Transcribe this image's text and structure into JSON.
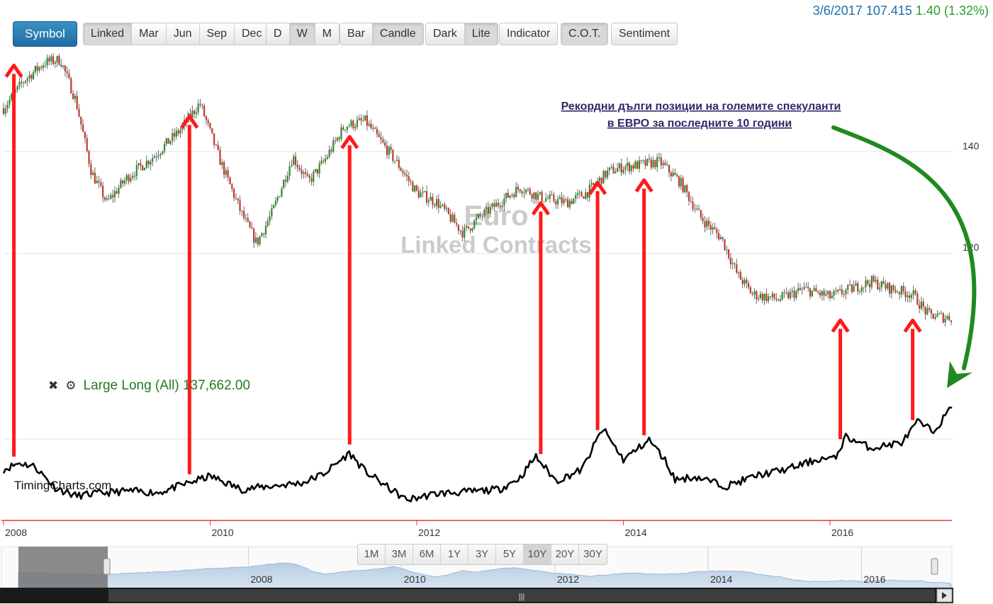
{
  "toolbar": {
    "symbol_label": "Symbol",
    "contract_buttons": [
      "Linked",
      "Mar",
      "Jun",
      "Sep",
      "Dec"
    ],
    "period_buttons": [
      "D",
      "W",
      "M"
    ],
    "period_active": "W",
    "style_buttons": [
      "Bar",
      "Candle"
    ],
    "style_active": "Candle",
    "theme_buttons": [
      "Dark",
      "Lite"
    ],
    "theme_active": "Lite",
    "indicator_label": "Indicator",
    "cot_label": "C.O.T.",
    "sentiment_label": "Sentiment"
  },
  "quote": {
    "date": "3/6/2017",
    "price": "107.415",
    "change": "1.40",
    "change_pct": "(1.32%)"
  },
  "chart_watermark": {
    "line1": "Euro",
    "line2": "Linked Contracts"
  },
  "annotation": {
    "line1": "Рекордни дълги позиции на големите спекуланти",
    "line2": "в ЕВРО за последните 10 години"
  },
  "indicator": {
    "label": "Large Long (All) 137,662.00",
    "close_icon": "close-icon",
    "settings_icon": "gear-icon"
  },
  "brand": "TimingCharts.com",
  "range_selector": {
    "buttons": [
      "1M",
      "3M",
      "6M",
      "1Y",
      "3Y",
      "5Y",
      "10Y",
      "20Y",
      "30Y"
    ],
    "active": "10Y"
  },
  "navigator": {
    "year_labels": [
      "2008",
      "2010",
      "2012",
      "2014",
      "2016"
    ],
    "scroll_icon": "scrollbar-grip-icon"
  },
  "colors": {
    "up_candle": "#2e8b2e",
    "down_candle": "#c0392b",
    "arrow_red": "#ff1a1a",
    "arrow_green": "#1f8a1f",
    "indicator_line": "#000000",
    "axis_red": "#e53935"
  },
  "chart_data": [
    {
      "type": "candlestick",
      "title": "Euro Linked Contracts",
      "period": "weekly",
      "x_range": [
        "2008-01",
        "2017-03"
      ],
      "y_ticks": [
        120,
        140
      ],
      "x_ticks": [
        "2008",
        "2010",
        "2012",
        "2014",
        "2016"
      ],
      "series": [
        {
          "name": "Euro",
          "x": [
            2008.0,
            2008.2,
            2008.4,
            2008.55,
            2008.7,
            2008.85,
            2009.0,
            2009.2,
            2009.45,
            2009.7,
            2009.9,
            2010.1,
            2010.3,
            2010.45,
            2010.6,
            2010.8,
            2010.95,
            2011.1,
            2011.3,
            2011.5,
            2011.65,
            2011.8,
            2012.0,
            2012.2,
            2012.45,
            2012.6,
            2012.8,
            2013.0,
            2013.2,
            2013.45,
            2013.65,
            2013.85,
            2014.0,
            2014.2,
            2014.35,
            2014.55,
            2014.75,
            2014.95,
            2015.1,
            2015.25,
            2015.5,
            2015.75,
            2016.0,
            2016.2,
            2016.4,
            2016.6,
            2016.8,
            2016.95,
            2017.1,
            2017.18
          ],
          "values": [
            148.5,
            154,
            157.5,
            158,
            150,
            136,
            130,
            135,
            139,
            144,
            149.5,
            138,
            128,
            122,
            128,
            139,
            134,
            138,
            145,
            146,
            142,
            138,
            132,
            130,
            124,
            127,
            130,
            133,
            131,
            130,
            132,
            136,
            137,
            137.5,
            138,
            134,
            127,
            123,
            116,
            112,
            111,
            113,
            111.5,
            113,
            114.5,
            113,
            112,
            108,
            107.5,
            107.4
          ]
        }
      ]
    },
    {
      "type": "line",
      "title": "Large Long (All)",
      "series": [
        {
          "name": "Large Long (All)",
          "x": [
            2008.0,
            2008.15,
            2008.3,
            2008.5,
            2008.7,
            2008.9,
            2009.2,
            2009.5,
            2009.8,
            2010.0,
            2010.3,
            2010.6,
            2010.9,
            2011.1,
            2011.35,
            2011.5,
            2011.7,
            2011.9,
            2012.2,
            2012.5,
            2012.8,
            2013.0,
            2013.15,
            2013.35,
            2013.6,
            2013.8,
            2014.0,
            2014.25,
            2014.4,
            2014.5,
            2014.7,
            2015.0,
            2015.3,
            2015.6,
            2015.9,
            2016.05,
            2016.15,
            2016.4,
            2016.7,
            2016.85,
            2017.0,
            2017.18
          ],
          "values": [
            62000,
            70000,
            66000,
            40000,
            30000,
            33000,
            36000,
            34000,
            46000,
            54000,
            38000,
            42000,
            46000,
            57000,
            82000,
            60000,
            42000,
            25000,
            33000,
            35000,
            38000,
            52000,
            78000,
            48000,
            62000,
            112000,
            74000,
            98000,
            74000,
            50000,
            53000,
            42000,
            55000,
            63000,
            75000,
            75000,
            102000,
            88000,
            95000,
            120000,
            108000,
            137662
          ]
        }
      ]
    }
  ]
}
